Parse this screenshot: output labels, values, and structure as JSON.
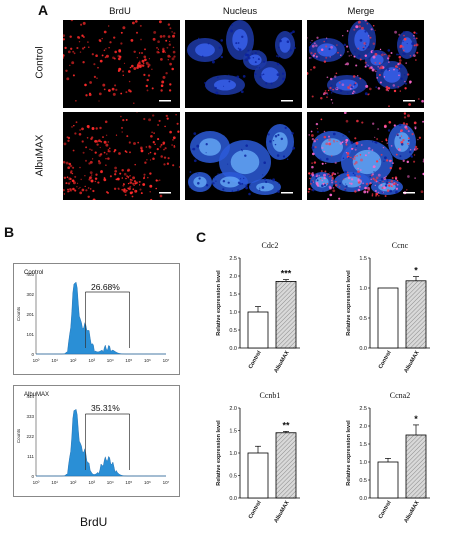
{
  "panel_a": {
    "letter": "A",
    "columns": [
      "BrdU",
      "Nucleus",
      "Merge"
    ],
    "rows": [
      "Control",
      "AlbuMAX"
    ]
  },
  "panel_b": {
    "letter": "B",
    "xlabel": "BrdU",
    "plots": [
      {
        "sample": "Control",
        "gate_percent": "26.68%",
        "ymax": "403",
        "yticks": [
          "403",
          "302",
          "201",
          "101",
          "0"
        ],
        "ylabel": "Counts"
      },
      {
        "sample": "AlbuMAX",
        "gate_percent": "35.31%",
        "ymax": "444",
        "yticks": [
          "444",
          "333",
          "222",
          "111",
          "0"
        ],
        "ylabel": "Counts"
      }
    ],
    "xticks": [
      "10⁰",
      "10¹",
      "10²",
      "10³",
      "10⁴",
      "10⁵",
      "10⁶",
      "10⁷"
    ]
  },
  "panel_c": {
    "letter": "C",
    "colors": {
      "control": "#ffffff",
      "albumax": "#d9d9d9",
      "stroke": "#000000"
    }
  },
  "chart_data": [
    {
      "type": "bar",
      "title": "Cdc2",
      "categories": [
        "Control",
        "AlbuMAX"
      ],
      "values": [
        1.0,
        1.85
      ],
      "errors": [
        0.15,
        0.05
      ],
      "ylabel": "Relative expression level",
      "ylim": [
        0,
        2.5
      ],
      "yticks": [
        "0.0",
        "0.5",
        "1.0",
        "1.5",
        "2.0",
        "2.5"
      ],
      "significance": "***"
    },
    {
      "type": "bar",
      "title": "Ccnc",
      "categories": [
        "Control",
        "AlbuMAX"
      ],
      "values": [
        1.0,
        1.12
      ],
      "errors": [
        0.0,
        0.07
      ],
      "ylabel": "Relative expression level",
      "ylim": [
        0,
        1.5
      ],
      "yticks": [
        "0.0",
        "0.5",
        "1.0",
        "1.5"
      ],
      "significance": "*"
    },
    {
      "type": "bar",
      "title": "Ccnb1",
      "categories": [
        "Control",
        "AlbuMAX"
      ],
      "values": [
        1.0,
        1.45
      ],
      "errors": [
        0.15,
        0.03
      ],
      "ylabel": "Relative expression level",
      "ylim": [
        0,
        2.0
      ],
      "yticks": [
        "0.0",
        "0.5",
        "1.0",
        "1.5",
        "2.0"
      ],
      "significance": "**"
    },
    {
      "type": "bar",
      "title": "Ccna2",
      "categories": [
        "Control",
        "AlbuMAX"
      ],
      "values": [
        1.0,
        1.75
      ],
      "errors": [
        0.1,
        0.28
      ],
      "ylabel": "Relative expression level",
      "ylim": [
        0,
        2.5
      ],
      "yticks": [
        "0.0",
        "0.5",
        "1.0",
        "1.5",
        "2.0",
        "2.5"
      ],
      "significance": "*"
    }
  ]
}
